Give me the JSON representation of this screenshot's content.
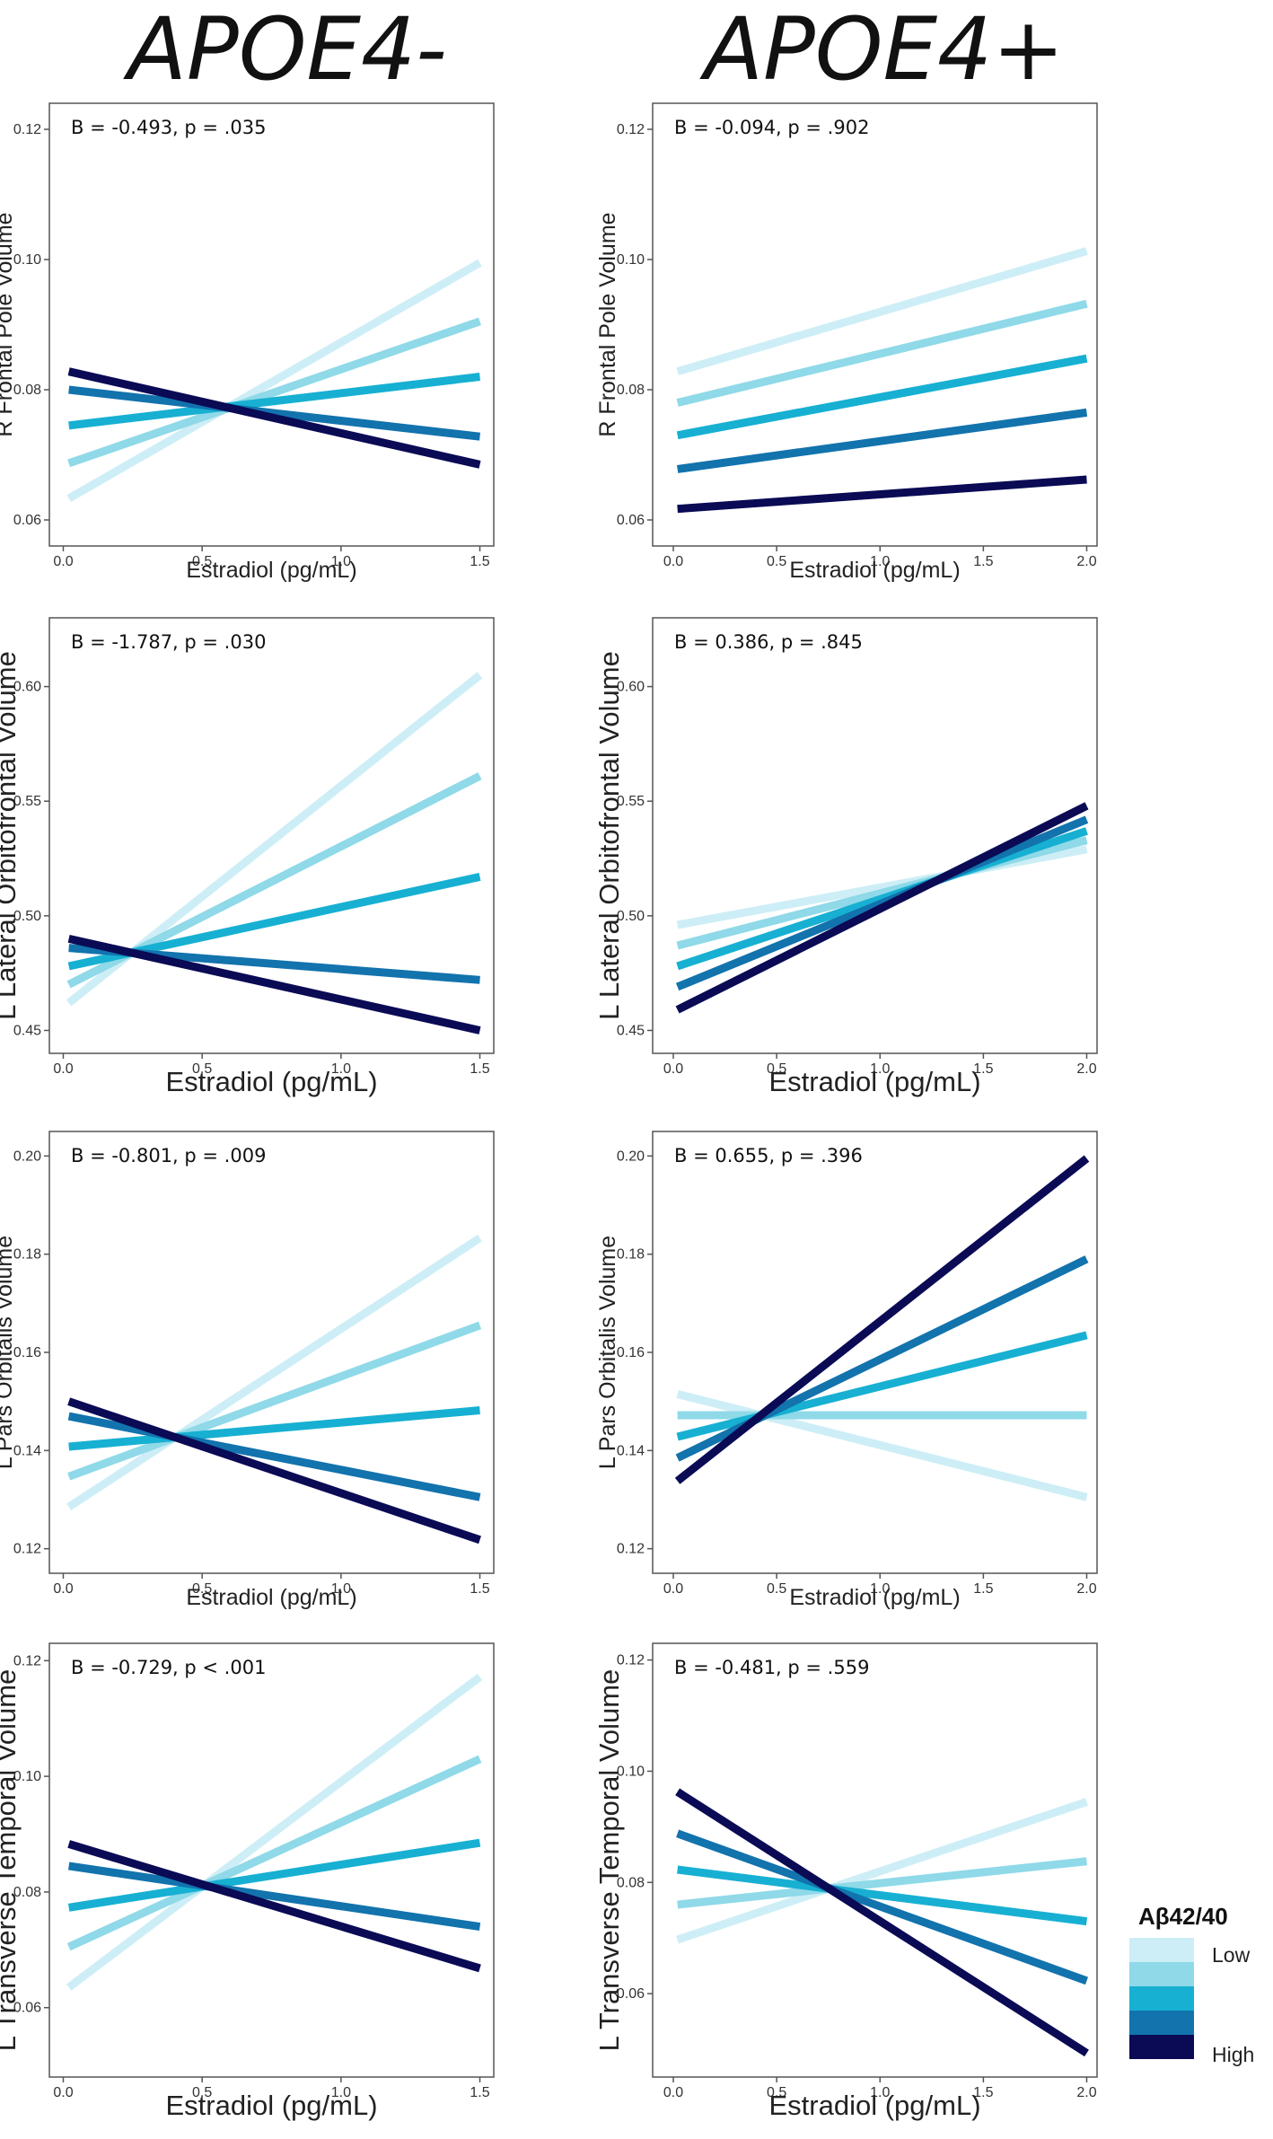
{
  "column_titles": [
    "APOE4-",
    "APOE4+"
  ],
  "legend": {
    "title": "Aβ42/40",
    "low_label": "Low",
    "high_label": "High",
    "levels": [
      "Level 1 (Low)",
      "Level 2",
      "Level 3",
      "Level 4",
      "Level 5 (High)"
    ],
    "colors": [
      "#cdeef6",
      "#8fd9e8",
      "#17b0d2",
      "#1273ad",
      "#0a0a55"
    ]
  },
  "chart_data": [
    {
      "type": "line",
      "row": 0,
      "col": 0,
      "annotation": "B = -0.493, p = .035",
      "xlabel": "Estradiol (pg/mL)",
      "ylabel": "R Frontal Pole Volume",
      "xlim": [
        -0.05,
        1.55
      ],
      "ylim": [
        0.056,
        0.124
      ],
      "xticks": [
        0.0,
        0.5,
        1.0,
        1.5
      ],
      "xtick_labels": [
        "0.0",
        "0.5",
        "1.0",
        "1.5"
      ],
      "yticks": [
        0.06,
        0.08,
        0.1,
        0.12
      ],
      "ytick_labels": [
        "0.06",
        "0.08",
        "0.10",
        "0.12"
      ],
      "x": [
        0.02,
        1.5
      ],
      "series": [
        {
          "name": "Level 1 (Low)",
          "values": [
            0.0633,
            0.0995
          ]
        },
        {
          "name": "Level 2",
          "values": [
            0.0687,
            0.0905
          ]
        },
        {
          "name": "Level 3",
          "values": [
            0.0745,
            0.082
          ]
        },
        {
          "name": "Level 4",
          "values": [
            0.08,
            0.0728
          ]
        },
        {
          "name": "Level 5 (High)",
          "values": [
            0.0828,
            0.0685
          ]
        }
      ]
    },
    {
      "type": "line",
      "row": 0,
      "col": 1,
      "annotation": "B = -0.094, p = .902",
      "xlabel": "Estradiol (pg/mL)",
      "ylabel": "R Frontal Pole Volume",
      "xlim": [
        -0.1,
        2.05
      ],
      "ylim": [
        0.056,
        0.124
      ],
      "xticks": [
        0.0,
        0.5,
        1.0,
        1.5,
        2.0
      ],
      "xtick_labels": [
        "0.0",
        "0.5",
        "1.0",
        "1.5",
        "2.0"
      ],
      "yticks": [
        0.06,
        0.08,
        0.1,
        0.12
      ],
      "ytick_labels": [
        "0.06",
        "0.08",
        "0.10",
        "0.12"
      ],
      "x": [
        0.02,
        2.0
      ],
      "series": [
        {
          "name": "Level 1 (Low)",
          "values": [
            0.0828,
            0.1013
          ]
        },
        {
          "name": "Level 2",
          "values": [
            0.078,
            0.0932
          ]
        },
        {
          "name": "Level 3",
          "values": [
            0.073,
            0.0848
          ]
        },
        {
          "name": "Level 4",
          "values": [
            0.0678,
            0.0765
          ]
        },
        {
          "name": "Level 5 (High)",
          "values": [
            0.0617,
            0.0662
          ]
        }
      ]
    },
    {
      "type": "line",
      "row": 1,
      "col": 0,
      "annotation": "B = -1.787, p = .030",
      "xlabel": "Estradiol (pg/mL)",
      "ylabel": "L Lateral Orbitofrontal Volume",
      "xlim": [
        -0.05,
        1.55
      ],
      "ylim": [
        0.44,
        0.63
      ],
      "xticks": [
        0.0,
        0.5,
        1.0,
        1.5
      ],
      "xtick_labels": [
        "0.0",
        "0.5",
        "1.0",
        "1.5"
      ],
      "yticks": [
        0.45,
        0.5,
        0.55,
        0.6
      ],
      "ytick_labels": [
        "0.45",
        "0.50",
        "0.55",
        "0.60"
      ],
      "x": [
        0.02,
        1.5
      ],
      "series": [
        {
          "name": "Level 1 (Low)",
          "values": [
            0.462,
            0.605
          ]
        },
        {
          "name": "Level 2",
          "values": [
            0.47,
            0.561
          ]
        },
        {
          "name": "Level 3",
          "values": [
            0.478,
            0.517
          ]
        },
        {
          "name": "Level 4",
          "values": [
            0.486,
            0.472
          ]
        },
        {
          "name": "Level 5 (High)",
          "values": [
            0.49,
            0.45
          ]
        }
      ]
    },
    {
      "type": "line",
      "row": 1,
      "col": 1,
      "annotation": "B = 0.386, p = .845",
      "xlabel": "Estradiol (pg/mL)",
      "ylabel": "L Lateral Orbitofrontal Volume",
      "xlim": [
        -0.1,
        2.05
      ],
      "ylim": [
        0.44,
        0.63
      ],
      "xticks": [
        0.0,
        0.5,
        1.0,
        1.5,
        2.0
      ],
      "xtick_labels": [
        "0.0",
        "0.5",
        "1.0",
        "1.5",
        "2.0"
      ],
      "yticks": [
        0.45,
        0.5,
        0.55,
        0.6
      ],
      "ytick_labels": [
        "0.45",
        "0.50",
        "0.55",
        "0.60"
      ],
      "x": [
        0.02,
        2.0
      ],
      "series": [
        {
          "name": "Level 1 (Low)",
          "values": [
            0.496,
            0.529
          ]
        },
        {
          "name": "Level 2",
          "values": [
            0.487,
            0.533
          ]
        },
        {
          "name": "Level 3",
          "values": [
            0.478,
            0.537
          ]
        },
        {
          "name": "Level 4",
          "values": [
            0.469,
            0.542
          ]
        },
        {
          "name": "Level 5 (High)",
          "values": [
            0.459,
            0.548
          ]
        }
      ]
    },
    {
      "type": "line",
      "row": 2,
      "col": 0,
      "annotation": "B = -0.801, p = .009",
      "xlabel": "Estradiol (pg/mL)",
      "ylabel": "L Pars Orbitalis Volume",
      "xlim": [
        -0.05,
        1.55
      ],
      "ylim": [
        0.115,
        0.205
      ],
      "xticks": [
        0.0,
        0.5,
        1.0,
        1.5
      ],
      "xtick_labels": [
        "0.0",
        "0.5",
        "1.0",
        "1.5"
      ],
      "yticks": [
        0.12,
        0.14,
        0.16,
        0.18,
        0.2
      ],
      "ytick_labels": [
        "0.12",
        "0.14",
        "0.16",
        "0.18",
        "0.20"
      ],
      "x": [
        0.02,
        1.5
      ],
      "series": [
        {
          "name": "Level 1 (Low)",
          "values": [
            0.1285,
            0.1833
          ]
        },
        {
          "name": "Level 2",
          "values": [
            0.1347,
            0.1655
          ]
        },
        {
          "name": "Level 3",
          "values": [
            0.1408,
            0.1482
          ]
        },
        {
          "name": "Level 4",
          "values": [
            0.147,
            0.1305
          ]
        },
        {
          "name": "Level 5 (High)",
          "values": [
            0.15,
            0.1218
          ]
        }
      ]
    },
    {
      "type": "line",
      "row": 2,
      "col": 1,
      "annotation": "B = 0.655, p = .396",
      "xlabel": "Estradiol (pg/mL)",
      "ylabel": "L Pars Orbitalis Volume",
      "xlim": [
        -0.1,
        2.05
      ],
      "ylim": [
        0.115,
        0.205
      ],
      "xticks": [
        0.0,
        0.5,
        1.0,
        1.5,
        2.0
      ],
      "xtick_labels": [
        "0.0",
        "0.5",
        "1.0",
        "1.5",
        "2.0"
      ],
      "yticks": [
        0.12,
        0.14,
        0.16,
        0.18,
        0.2
      ],
      "ytick_labels": [
        "0.12",
        "0.14",
        "0.16",
        "0.18",
        "0.20"
      ],
      "x": [
        0.02,
        2.0
      ],
      "series": [
        {
          "name": "Level 1 (Low)",
          "values": [
            0.1515,
            0.1305
          ]
        },
        {
          "name": "Level 2",
          "values": [
            0.1472,
            0.1472
          ]
        },
        {
          "name": "Level 3",
          "values": [
            0.1428,
            0.1635
          ]
        },
        {
          "name": "Level 4",
          "values": [
            0.1385,
            0.179
          ]
        },
        {
          "name": "Level 5 (High)",
          "values": [
            0.1338,
            0.1995
          ]
        }
      ]
    },
    {
      "type": "line",
      "row": 3,
      "col": 0,
      "annotation": "B = -0.729, p < .001",
      "xlabel": "Estradiol (pg/mL)",
      "ylabel": "L Transverse Temporal Volume",
      "xlim": [
        -0.05,
        1.55
      ],
      "ylim": [
        0.048,
        0.123
      ],
      "xticks": [
        0.0,
        0.5,
        1.0,
        1.5
      ],
      "xtick_labels": [
        "0.0",
        "0.5",
        "1.0",
        "1.5"
      ],
      "yticks": [
        0.06,
        0.08,
        0.1,
        0.12
      ],
      "ytick_labels": [
        "0.06",
        "0.08",
        "0.10",
        "0.12"
      ],
      "x": [
        0.02,
        1.5
      ],
      "series": [
        {
          "name": "Level 1 (Low)",
          "values": [
            0.0635,
            0.1172
          ]
        },
        {
          "name": "Level 2",
          "values": [
            0.0705,
            0.103
          ]
        },
        {
          "name": "Level 3",
          "values": [
            0.0773,
            0.0885
          ]
        },
        {
          "name": "Level 4",
          "values": [
            0.0845,
            0.074
          ]
        },
        {
          "name": "Level 5 (High)",
          "values": [
            0.0883,
            0.0668
          ]
        }
      ]
    },
    {
      "type": "line",
      "row": 3,
      "col": 1,
      "annotation": "B = -0.481, p = .559",
      "xlabel": "Estradiol (pg/mL)",
      "ylabel": "L Transverse Temporal Volume",
      "xlim": [
        -0.1,
        2.05
      ],
      "ylim": [
        0.045,
        0.123
      ],
      "xticks": [
        0.0,
        0.5,
        1.0,
        1.5,
        2.0
      ],
      "xtick_labels": [
        "0.0",
        "0.5",
        "1.0",
        "1.5",
        "2.0"
      ],
      "yticks": [
        0.06,
        0.08,
        0.1,
        0.12
      ],
      "ytick_labels": [
        "0.06",
        "0.08",
        "0.10",
        "0.12"
      ],
      "x": [
        0.02,
        2.0
      ],
      "series": [
        {
          "name": "Level 1 (Low)",
          "values": [
            0.0697,
            0.0945
          ]
        },
        {
          "name": "Level 2",
          "values": [
            0.076,
            0.0838
          ]
        },
        {
          "name": "Level 3",
          "values": [
            0.0823,
            0.073
          ]
        },
        {
          "name": "Level 4",
          "values": [
            0.0888,
            0.0623
          ]
        },
        {
          "name": "Level 5 (High)",
          "values": [
            0.0963,
            0.0493
          ]
        }
      ]
    }
  ]
}
